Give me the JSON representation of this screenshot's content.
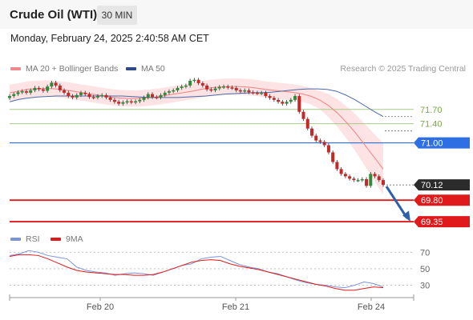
{
  "header": {
    "title": "Crude Oil (WTI)",
    "timeframe": "30 MIN"
  },
  "datetime": "Monday, February 24, 2025 2:40:58 AM CET",
  "legend": {
    "ma20_bb": "MA 20 + Bollinger Bands",
    "ma50": "MA 50",
    "rsi": "RSI",
    "rsi_ma": "9MA"
  },
  "credit": "Research © 2025 Trading Central",
  "colors": {
    "bollinger_fill": "#fde3e3",
    "ma20": "#f08a8a",
    "ma50": "#4a6aa8",
    "bull": "#2e8b3a",
    "bear": "#c62828",
    "support": "#e01a1a",
    "resistance": "#2f6fe4",
    "pivot_band": "#a8c98a",
    "current": "#2b2b2b",
    "rsi_line": "#7a94d8"
  },
  "chart_data": {
    "type": "line",
    "title": "Crude Oil (WTI)",
    "timeframe": "30 MIN",
    "x_labels": [
      "Feb 20",
      "Feb 21",
      "Feb 24"
    ],
    "y_range": [
      69.1,
      72.45
    ],
    "last_price": 70.12,
    "close_series": [
      71.98,
      72.02,
      72.06,
      72.08,
      72.05,
      72.1,
      72.15,
      72.12,
      72.09,
      72.18,
      72.26,
      72.2,
      72.1,
      72.05,
      71.98,
      71.95,
      72.0,
      72.05,
      72.02,
      71.96,
      71.95,
      71.98,
      72.0,
      71.95,
      71.9,
      71.86,
      71.82,
      71.85,
      71.87,
      71.85,
      71.87,
      71.9,
      71.95,
      72.02,
      71.96,
      71.95,
      72.0,
      72.05,
      72.08,
      72.1,
      72.15,
      72.18,
      72.2,
      72.3,
      72.32,
      72.25,
      72.2,
      72.12,
      72.1,
      72.14,
      72.17,
      72.18,
      72.16,
      72.15,
      72.1,
      72.08,
      72.1,
      72.06,
      72.05,
      72.04,
      72.05,
      71.98,
      71.94,
      71.9,
      71.86,
      71.82,
      71.86,
      71.9,
      71.98,
      71.65,
      71.5,
      71.3,
      71.15,
      71.05,
      71.02,
      70.95,
      70.8,
      70.6,
      70.45,
      70.35,
      70.3,
      70.25,
      70.22,
      70.22,
      70.24,
      70.1,
      70.35,
      70.3,
      70.22,
      70.12
    ],
    "ma20": [
      72.05,
      72.08,
      72.12,
      72.13,
      72.14,
      72.13,
      72.11,
      72.08,
      72.05,
      72.02,
      71.99,
      71.96,
      71.94,
      71.93,
      71.93,
      71.94,
      71.96,
      71.99,
      72.02,
      72.05,
      72.08,
      72.12,
      72.15,
      72.17,
      72.18,
      72.18,
      72.17,
      72.15,
      72.12,
      72.1,
      72.08,
      72.06,
      72.03,
      71.98,
      71.9,
      71.78,
      71.62,
      71.42,
      71.2,
      70.95,
      70.7,
      70.45
    ],
    "ma50": [
      71.86,
      71.91,
      71.94,
      71.96,
      71.97,
      71.98,
      71.98,
      71.98,
      71.98,
      71.98,
      71.98,
      71.98,
      71.98,
      71.97,
      71.96,
      71.95,
      71.95,
      71.95,
      71.95,
      71.96,
      71.97,
      71.98,
      72.0,
      72.02,
      72.03,
      72.04,
      72.05,
      72.05,
      72.06,
      72.08,
      72.1,
      72.12,
      72.13,
      72.13,
      72.12,
      72.08,
      72.0,
      71.9,
      71.78,
      71.66,
      71.55
    ],
    "levels": [
      {
        "value": 71.7,
        "label": "71.70",
        "type": "pivot"
      },
      {
        "value": 71.4,
        "label": "71.40",
        "type": "pivot"
      },
      {
        "value": 71.0,
        "label": "71.00",
        "type": "resistance"
      },
      {
        "value": 70.12,
        "label": "70.12",
        "type": "current"
      },
      {
        "value": 69.8,
        "label": "69.80",
        "type": "support"
      },
      {
        "value": 69.35,
        "label": "69.35",
        "type": "support"
      }
    ],
    "rsi": {
      "ylim": [
        15,
        80
      ],
      "ticks": [
        70,
        50,
        30
      ],
      "values": [
        66,
        68,
        72,
        70,
        66,
        64,
        62,
        52,
        48,
        46,
        45,
        42,
        44,
        45,
        44,
        42,
        46,
        50,
        54,
        56,
        62,
        64,
        65,
        60,
        55,
        52,
        50,
        46,
        44,
        40,
        36,
        33,
        31,
        30,
        28,
        27,
        30,
        34,
        32,
        28
      ],
      "ma9": [
        65,
        67,
        67,
        66,
        62,
        57,
        52,
        48,
        46,
        45,
        44,
        43,
        43,
        42,
        42,
        43,
        46,
        50,
        54,
        58,
        60,
        61,
        60,
        56,
        53,
        51,
        49,
        46,
        43,
        40,
        37,
        34,
        31,
        29,
        26,
        24,
        24,
        26,
        28,
        27
      ]
    }
  }
}
